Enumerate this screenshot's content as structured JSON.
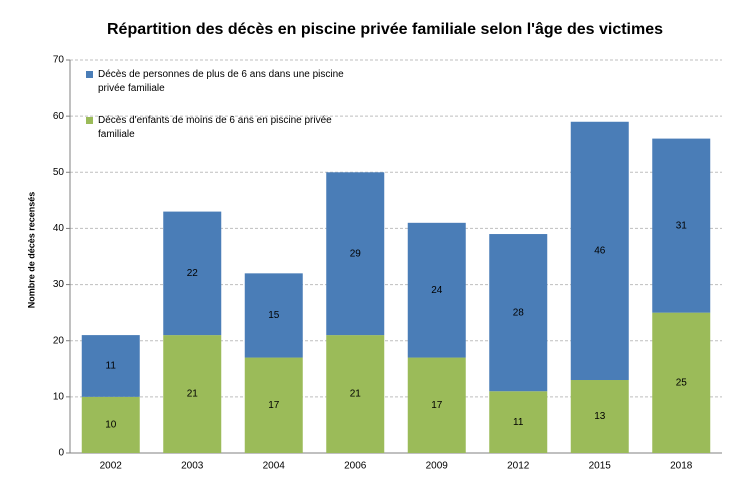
{
  "chart_data": {
    "type": "stacked-bar",
    "title": "Répartition des décès en piscine privée familiale selon l'âge des victimes",
    "y_label": "Nombre de décès recensés",
    "categories": [
      "2002",
      "2003",
      "2004",
      "2006",
      "2009",
      "2012",
      "2015",
      "2018"
    ],
    "series": [
      {
        "name": "Décès d'enfants de moins de 6 ans en piscine privée familiale",
        "color": "#9bbb59",
        "values": [
          10,
          21,
          17,
          21,
          17,
          11,
          13,
          25
        ]
      },
      {
        "name": "Décès de personnes de plus de 6 ans dans une piscine privée familiale",
        "color": "#4a7db7",
        "values": [
          11,
          22,
          15,
          29,
          24,
          28,
          46,
          31
        ]
      }
    ],
    "ylim": [
      0,
      70
    ],
    "yticks": [
      0,
      10,
      20,
      30,
      40,
      50,
      60,
      70
    ],
    "grid": true,
    "legend_position": "top-left"
  }
}
